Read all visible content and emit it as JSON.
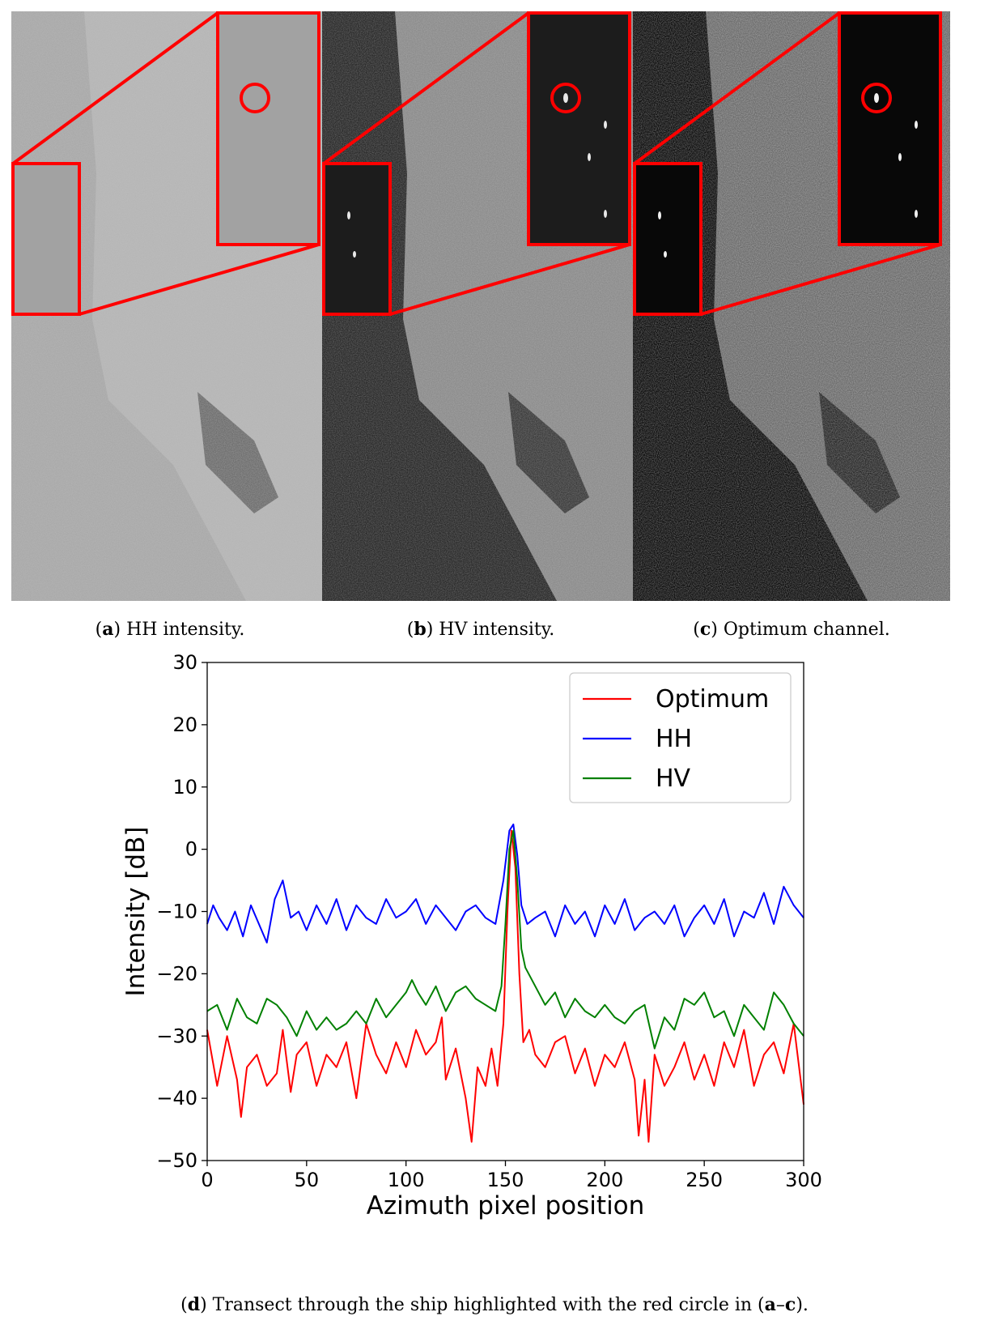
{
  "panels": [
    {
      "letter": "a",
      "text": " HH intensity."
    },
    {
      "letter": "b",
      "text": " HV intensity."
    },
    {
      "letter": "c",
      "text": " Optimum channel."
    }
  ],
  "bottom_caption": {
    "letter_open": "(",
    "letter": "d",
    "middle": " Transect through the ship highlighted with the red circle in (",
    "letters2": "a",
    "dash": "–",
    "letters3": "c",
    "close": ")."
  },
  "colors": {
    "highlight": "#ff0000",
    "optimum": "#ff0000",
    "hh": "#0000ff",
    "hv": "#008000"
  },
  "chart_data": {
    "type": "line",
    "xlabel": "Azimuth pixel position",
    "ylabel": "Intensity [dB]",
    "xlim": [
      0,
      300
    ],
    "ylim": [
      -50,
      30
    ],
    "xticks": [
      0,
      50,
      100,
      150,
      200,
      250,
      300
    ],
    "yticks": [
      30,
      20,
      10,
      0,
      -10,
      -20,
      -30,
      -40,
      -50
    ],
    "legend_position": "top-right",
    "series": [
      {
        "name": "Optimum",
        "color": "#ff0000",
        "x": [
          0,
          5,
          10,
          15,
          17,
          20,
          25,
          30,
          35,
          38,
          42,
          45,
          50,
          55,
          60,
          65,
          70,
          75,
          80,
          85,
          90,
          95,
          100,
          105,
          110,
          115,
          118,
          120,
          125,
          130,
          133,
          136,
          140,
          143,
          146,
          149,
          151,
          153,
          155,
          157,
          159,
          162,
          165,
          170,
          175,
          180,
          185,
          190,
          195,
          200,
          205,
          210,
          215,
          217,
          220,
          222,
          225,
          230,
          235,
          240,
          245,
          250,
          255,
          260,
          265,
          270,
          275,
          280,
          285,
          290,
          295,
          300
        ],
        "y": [
          -29,
          -38,
          -30,
          -37,
          -43,
          -35,
          -33,
          -38,
          -36,
          -29,
          -39,
          -33,
          -31,
          -38,
          -33,
          -35,
          -31,
          -40,
          -28,
          -33,
          -36,
          -31,
          -35,
          -29,
          -33,
          -31,
          -27,
          -37,
          -32,
          -40,
          -47,
          -35,
          -38,
          -32,
          -38,
          -28,
          -10,
          3,
          -3,
          -20,
          -31,
          -29,
          -33,
          -35,
          -31,
          -30,
          -36,
          -32,
          -38,
          -33,
          -35,
          -31,
          -37,
          -46,
          -37,
          -47,
          -33,
          -38,
          -35,
          -31,
          -37,
          -33,
          -38,
          -31,
          -35,
          -29,
          -38,
          -33,
          -31,
          -36,
          -28,
          -41
        ]
      },
      {
        "name": "HH",
        "color": "#0000ff",
        "x": [
          0,
          3,
          6,
          10,
          14,
          18,
          22,
          26,
          30,
          34,
          38,
          42,
          46,
          50,
          55,
          60,
          65,
          70,
          75,
          80,
          85,
          90,
          95,
          100,
          105,
          110,
          115,
          120,
          125,
          130,
          135,
          140,
          145,
          149,
          152,
          154,
          156,
          158,
          161,
          165,
          170,
          175,
          180,
          185,
          190,
          195,
          200,
          205,
          210,
          215,
          220,
          225,
          230,
          235,
          240,
          245,
          250,
          255,
          260,
          265,
          270,
          275,
          280,
          285,
          290,
          295,
          300
        ],
        "y": [
          -12,
          -9,
          -11,
          -13,
          -10,
          -14,
          -9,
          -12,
          -15,
          -8,
          -5,
          -11,
          -10,
          -13,
          -9,
          -12,
          -8,
          -13,
          -9,
          -11,
          -12,
          -8,
          -11,
          -10,
          -8,
          -12,
          -9,
          -11,
          -13,
          -10,
          -9,
          -11,
          -12,
          -5,
          3,
          4,
          -1,
          -9,
          -12,
          -11,
          -10,
          -14,
          -9,
          -12,
          -10,
          -14,
          -9,
          -12,
          -8,
          -13,
          -11,
          -10,
          -12,
          -9,
          -14,
          -11,
          -9,
          -12,
          -8,
          -14,
          -10,
          -11,
          -7,
          -12,
          -6,
          -9,
          -11
        ]
      },
      {
        "name": "HV",
        "color": "#008000",
        "x": [
          0,
          5,
          10,
          15,
          20,
          25,
          30,
          35,
          40,
          45,
          50,
          55,
          60,
          65,
          70,
          75,
          80,
          85,
          90,
          95,
          100,
          103,
          106,
          110,
          115,
          120,
          125,
          130,
          135,
          140,
          145,
          148,
          150,
          152,
          154,
          156,
          158,
          160,
          165,
          170,
          175,
          180,
          185,
          190,
          195,
          200,
          205,
          210,
          215,
          220,
          225,
          230,
          235,
          240,
          245,
          250,
          255,
          260,
          265,
          270,
          275,
          280,
          285,
          290,
          295,
          300
        ],
        "y": [
          -26,
          -25,
          -29,
          -24,
          -27,
          -28,
          -24,
          -25,
          -27,
          -30,
          -26,
          -29,
          -27,
          -29,
          -28,
          -26,
          -28,
          -24,
          -27,
          -25,
          -23,
          -21,
          -23,
          -25,
          -22,
          -26,
          -23,
          -22,
          -24,
          -25,
          -26,
          -22,
          -12,
          0,
          3,
          -5,
          -16,
          -19,
          -22,
          -25,
          -23,
          -27,
          -24,
          -26,
          -27,
          -25,
          -27,
          -28,
          -26,
          -25,
          -32,
          -27,
          -29,
          -24,
          -25,
          -23,
          -27,
          -26,
          -30,
          -25,
          -27,
          -29,
          -23,
          -25,
          -28,
          -30
        ]
      }
    ]
  }
}
